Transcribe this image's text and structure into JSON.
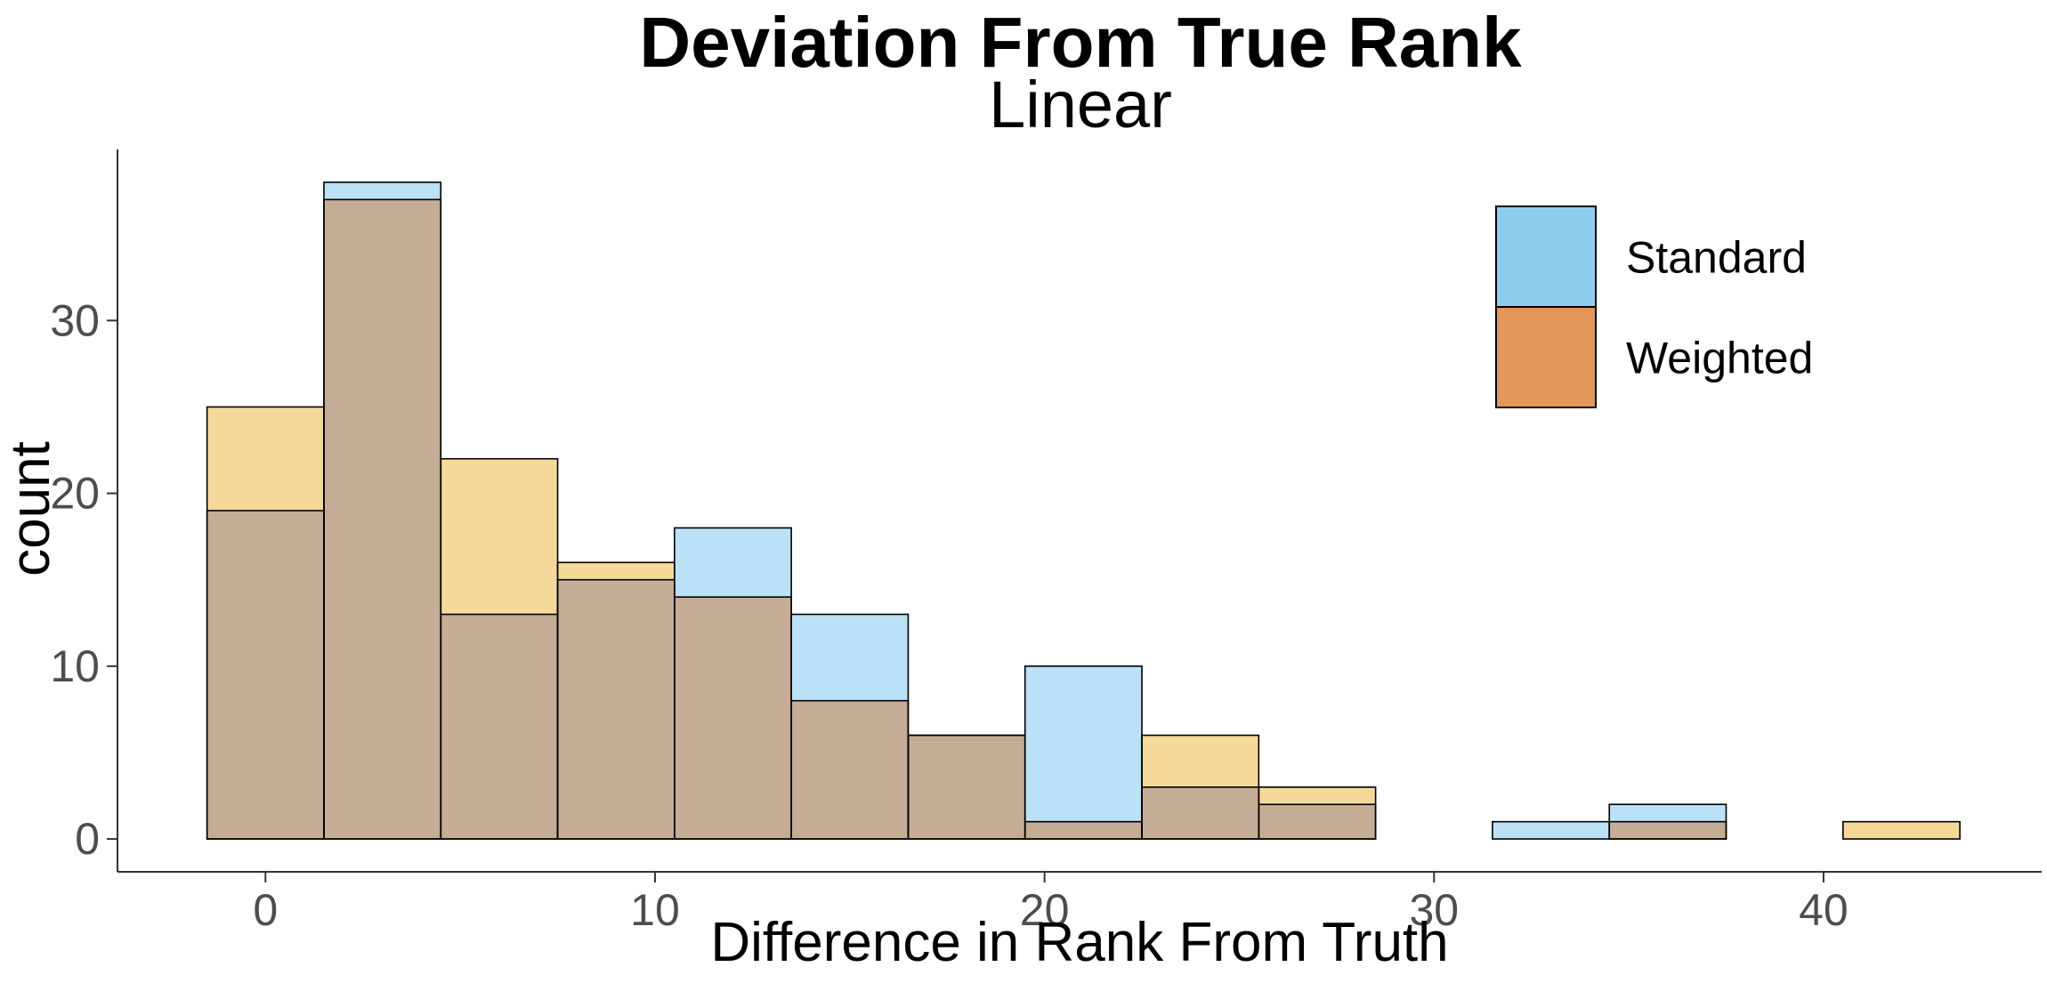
{
  "chart_data": {
    "type": "bar",
    "title": "Deviation From True Rank",
    "subtitle": "Linear",
    "xlabel": "Difference in Rank From Truth",
    "ylabel": "count",
    "bin_width": 3,
    "bins": [
      [
        -1.5,
        1.5
      ],
      [
        1.5,
        4.5
      ],
      [
        4.5,
        7.5
      ],
      [
        7.5,
        10.5
      ],
      [
        10.5,
        13.5
      ],
      [
        13.5,
        16.5
      ],
      [
        16.5,
        19.5
      ],
      [
        19.5,
        22.5
      ],
      [
        22.5,
        25.5
      ],
      [
        25.5,
        28.5
      ],
      [
        28.5,
        31.5
      ],
      [
        31.5,
        34.5
      ],
      [
        34.5,
        37.5
      ],
      [
        37.5,
        40.5
      ],
      [
        40.5,
        43.5
      ]
    ],
    "series": [
      {
        "name": "Standard",
        "color": "#56B4E9",
        "values": [
          19,
          38,
          13,
          15,
          18,
          13,
          6,
          10,
          3,
          2,
          0,
          1,
          2,
          0,
          0
        ]
      },
      {
        "name": "Weighted",
        "color": "#E69F00",
        "values": [
          25,
          37,
          22,
          16,
          14,
          8,
          6,
          1,
          6,
          3,
          0,
          0,
          1,
          0,
          1
        ]
      }
    ],
    "xlim": [
      -3.8,
      45.6
    ],
    "ylim": [
      -1.9,
      39.9
    ],
    "x_ticks": [
      {
        "value": 0,
        "label": "0"
      },
      {
        "value": 10,
        "label": "10"
      },
      {
        "value": 20,
        "label": "20"
      },
      {
        "value": 30,
        "label": "30"
      },
      {
        "value": 40,
        "label": "40"
      }
    ],
    "y_ticks": [
      {
        "value": 0,
        "label": "0"
      },
      {
        "value": 10,
        "label": "10"
      },
      {
        "value": 20,
        "label": "20"
      },
      {
        "value": 30,
        "label": "30"
      }
    ],
    "legend": {
      "position": "top-right",
      "entries": [
        {
          "label": "Standard",
          "color": "#8FCDEF"
        },
        {
          "label": "Weighted",
          "color": "#E4975A"
        }
      ]
    },
    "overlap_color": "#C4AC95",
    "grid": false
  }
}
